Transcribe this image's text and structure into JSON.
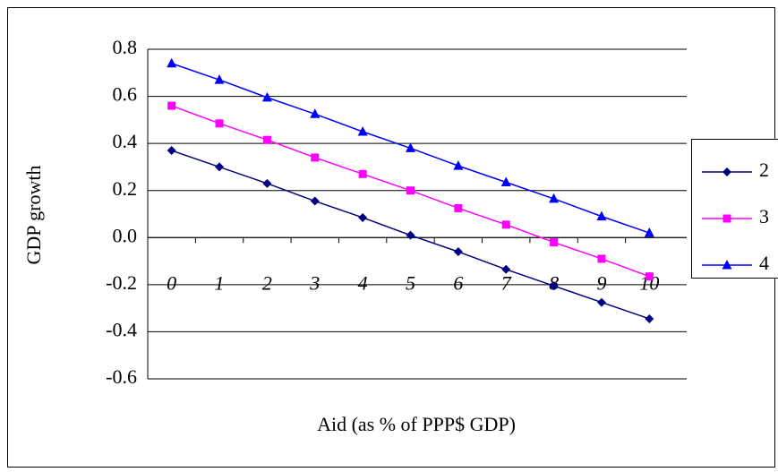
{
  "chart_data": {
    "type": "line",
    "x_label": "Aid (as % of PPP$ GDP)",
    "y_label": "GDP growth",
    "categories": [
      "0",
      "1",
      "2",
      "3",
      "4",
      "5",
      "6",
      "7",
      "8",
      "9",
      "10"
    ],
    "series": [
      {
        "name": "2",
        "color": "#000080",
        "marker": "diamond",
        "values": [
          0.37,
          0.3,
          0.23,
          0.155,
          0.085,
          0.01,
          -0.06,
          -0.135,
          -0.205,
          -0.275,
          -0.345
        ]
      },
      {
        "name": "3",
        "color": "#ff00ff",
        "marker": "square",
        "values": [
          0.56,
          0.485,
          0.415,
          0.34,
          0.27,
          0.2,
          0.125,
          0.055,
          -0.02,
          -0.09,
          -0.165
        ]
      },
      {
        "name": "4",
        "color": "#0000ff",
        "marker": "triangle",
        "values": [
          0.74,
          0.67,
          0.595,
          0.525,
          0.45,
          0.38,
          0.305,
          0.235,
          0.165,
          0.09,
          0.02
        ]
      }
    ],
    "ylim": [
      -0.6,
      0.8
    ],
    "yticks": [
      -0.6,
      -0.4,
      -0.2,
      {
        "value": 0,
        "label": "0.0"
      },
      0.2,
      0.4,
      0.6,
      0.8
    ],
    "grid": true,
    "legend": "right"
  }
}
